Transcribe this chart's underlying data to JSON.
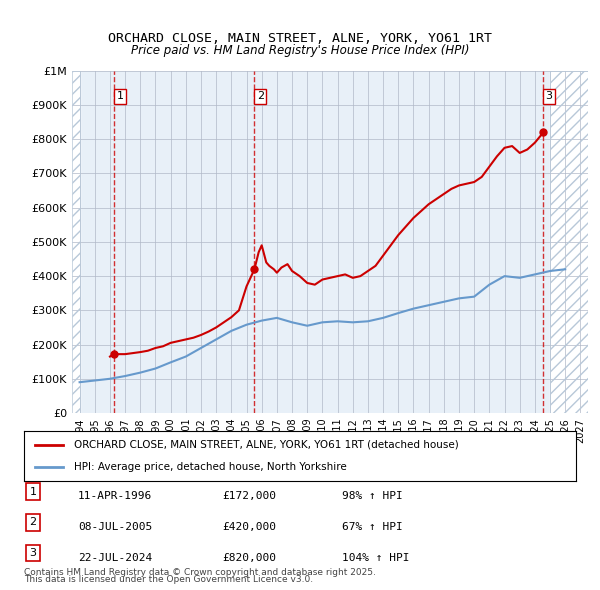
{
  "title": "ORCHARD CLOSE, MAIN STREET, ALNE, YORK, YO61 1RT",
  "subtitle": "Price paid vs. HM Land Registry's House Price Index (HPI)",
  "background_color": "#e8f0f8",
  "hatch_color": "#c8d4e0",
  "red_line_color": "#cc0000",
  "blue_line_color": "#6699cc",
  "grid_color": "#b0b8c8",
  "transactions": [
    {
      "label": "1",
      "date_str": "11-APR-1996",
      "year": 1996.28,
      "price": 172000,
      "hpi_pct": "98% ↑ HPI"
    },
    {
      "label": "2",
      "date_str": "08-JUL-2005",
      "year": 2005.52,
      "price": 420000,
      "hpi_pct": "67% ↑ HPI"
    },
    {
      "label": "3",
      "date_str": "22-JUL-2024",
      "year": 2024.56,
      "price": 820000,
      "hpi_pct": "104% ↑ HPI"
    }
  ],
  "xlim": [
    1993.5,
    2027.5
  ],
  "ylim": [
    0,
    1000000
  ],
  "yticks": [
    0,
    100000,
    200000,
    300000,
    400000,
    500000,
    600000,
    700000,
    800000,
    900000,
    1000000
  ],
  "ytick_labels": [
    "£0",
    "£100K",
    "£200K",
    "£300K",
    "£400K",
    "£500K",
    "£600K",
    "£700K",
    "£800K",
    "£900K",
    "£1M"
  ],
  "xticks": [
    1994,
    1995,
    1996,
    1997,
    1998,
    1999,
    2000,
    2001,
    2002,
    2003,
    2004,
    2005,
    2006,
    2007,
    2008,
    2009,
    2010,
    2011,
    2012,
    2013,
    2014,
    2015,
    2016,
    2017,
    2018,
    2019,
    2020,
    2021,
    2022,
    2023,
    2024,
    2025,
    2026,
    2027
  ],
  "legend_line1": "ORCHARD CLOSE, MAIN STREET, ALNE, YORK, YO61 1RT (detached house)",
  "legend_line2": "HPI: Average price, detached house, North Yorkshire",
  "footer1": "Contains HM Land Registry data © Crown copyright and database right 2025.",
  "footer2": "This data is licensed under the Open Government Licence v3.0."
}
